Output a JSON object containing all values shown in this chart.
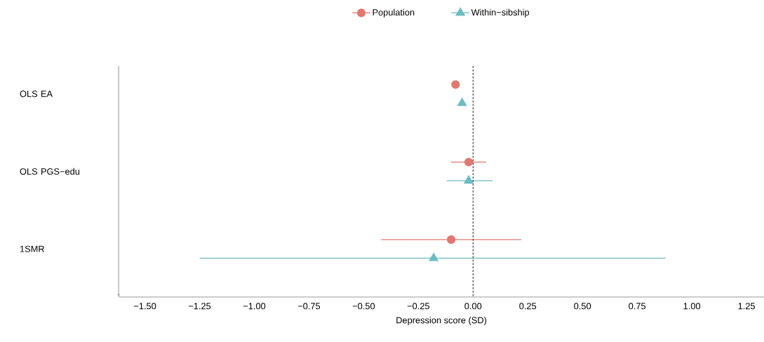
{
  "chart_data": {
    "type": "scatter",
    "orientation": "horizontal",
    "xlabel": "Depression score (SD)",
    "categories": [
      "OLS EA",
      "OLS PGS−edu",
      "1SMR"
    ],
    "series": [
      {
        "name": "Population",
        "color": "#e07870",
        "marker": "circle",
        "values": [
          -0.08,
          -0.02,
          -0.1
        ],
        "errors": [
          null,
          [
            -0.1,
            0.06
          ],
          [
            -0.42,
            0.22
          ]
        ]
      },
      {
        "name": "Within−sibship",
        "color": "#6cbcc1",
        "marker": "triangle",
        "values": [
          -0.05,
          -0.02,
          -0.18
        ],
        "errors": [
          null,
          [
            -0.12,
            0.09
          ],
          [
            -1.25,
            0.88
          ]
        ]
      }
    ],
    "xlim": [
      -1.62,
      1.33
    ],
    "xticks": [
      {
        "value": -1.5,
        "label": "−1.50"
      },
      {
        "value": -1.25,
        "label": "−1.25"
      },
      {
        "value": -1.0,
        "label": "−1.00"
      },
      {
        "value": -0.75,
        "label": "−0.75"
      },
      {
        "value": -0.5,
        "label": "−0.50"
      },
      {
        "value": -0.25,
        "label": "−0.25"
      },
      {
        "value": 0,
        "label": "0.00"
      },
      {
        "value": 0.25,
        "label": "0.25"
      },
      {
        "value": 0.5,
        "label": "0.50"
      },
      {
        "value": 0.75,
        "label": "0.75"
      },
      {
        "value": 1.0,
        "label": "1.00"
      },
      {
        "value": 1.25,
        "label": "1.25"
      }
    ],
    "ref_lines": [
      {
        "axis": "x",
        "value": 0,
        "color": "#000000",
        "line_style": "dashed"
      }
    ],
    "grid": false,
    "legend": "top"
  }
}
